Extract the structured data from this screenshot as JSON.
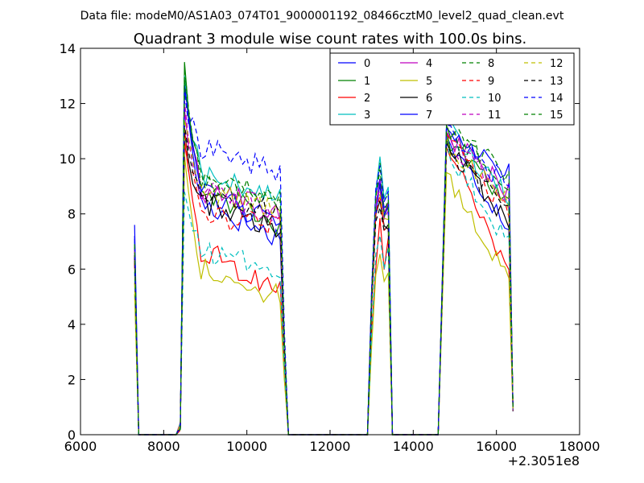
{
  "suptitle": "Data file: modeM0/AS1A03_074T01_9000001192_08466cztM0_level2_quad_clean.evt",
  "chart_data": {
    "type": "line",
    "title": "Quadrant 3 module wise count rates with 100.0s bins.",
    "xlabel": "",
    "ylabel": "",
    "xlim": [
      6000,
      18000
    ],
    "ylim": [
      0,
      14
    ],
    "x_offset_label": "+2.3051e8",
    "x_ticks": [
      6000,
      8000,
      10000,
      12000,
      14000,
      16000,
      18000
    ],
    "x_tick_labels": [
      "6000",
      "8000",
      "10000",
      "12000",
      "14000",
      "16000",
      "18000"
    ],
    "y_ticks": [
      0,
      2,
      4,
      6,
      8,
      10,
      12,
      14
    ],
    "y_tick_labels": [
      "0",
      "2",
      "4",
      "6",
      "8",
      "10",
      "12",
      "14"
    ],
    "legend_position": "top-right",
    "legend_columns": 4,
    "grid": false,
    "segments": [
      {
        "name": "gap-0",
        "x": [
          7300,
          7400
        ],
        "role": "zero"
      },
      {
        "name": "interval-1",
        "x_start": 7300,
        "x_end": 7400
      },
      {
        "name": "interval-2",
        "x_start": 8400,
        "x_end": 10900
      },
      {
        "name": "interval-3",
        "x_start": 13000,
        "x_end": 13500
      },
      {
        "name": "interval-4",
        "x_start": 14700,
        "x_end": 16400
      }
    ],
    "series": [
      {
        "name": "0",
        "color": "#0000ff",
        "dash": "solid",
        "levels": [
          7.6,
          12.8,
          8.6,
          7.1,
          9.4,
          8.6,
          10.8,
          7.6
        ]
      },
      {
        "name": "1",
        "color": "#008000",
        "dash": "solid",
        "levels": [
          6.9,
          13.5,
          9.2,
          7.6,
          9.1,
          8.2,
          11.0,
          8.2
        ]
      },
      {
        "name": "2",
        "color": "#ff0000",
        "dash": "solid",
        "levels": [
          6.3,
          10.6,
          6.9,
          5.3,
          7.9,
          6.2,
          10.4,
          5.9
        ]
      },
      {
        "name": "3",
        "color": "#00bfbf",
        "dash": "solid",
        "levels": [
          7.0,
          13.0,
          9.6,
          8.5,
          10.1,
          8.9,
          11.4,
          8.5
        ]
      },
      {
        "name": "4",
        "color": "#bf00bf",
        "dash": "solid",
        "levels": [
          6.6,
          11.8,
          9.0,
          8.1,
          9.2,
          8.3,
          11.2,
          8.8
        ]
      },
      {
        "name": "5",
        "color": "#bfbf00",
        "dash": "solid",
        "levels": [
          5.1,
          10.1,
          6.2,
          5.0,
          6.5,
          5.7,
          9.5,
          5.6
        ]
      },
      {
        "name": "6",
        "color": "#000000",
        "dash": "solid",
        "levels": [
          6.4,
          11.0,
          8.6,
          7.4,
          8.4,
          7.8,
          10.7,
          7.7
        ]
      },
      {
        "name": "7",
        "color": "#0000ff",
        "dash": "solid",
        "levels": [
          7.2,
          12.6,
          9.1,
          7.6,
          9.0,
          8.2,
          11.1,
          9.5
        ]
      },
      {
        "name": "8",
        "color": "#008000",
        "dash": "dashed",
        "levels": [
          6.8,
          13.3,
          9.5,
          8.3,
          9.7,
          8.7,
          11.3,
          9.5
        ]
      },
      {
        "name": "9",
        "color": "#ff0000",
        "dash": "dashed",
        "levels": [
          6.2,
          11.1,
          8.0,
          7.5,
          8.5,
          8.0,
          10.9,
          8.1
        ]
      },
      {
        "name": "10",
        "color": "#00bfbf",
        "dash": "dashed",
        "levels": [
          5.9,
          8.8,
          6.6,
          6.1,
          7.4,
          6.5,
          10.6,
          6.9
        ]
      },
      {
        "name": "11",
        "color": "#bf00bf",
        "dash": "dashed",
        "levels": [
          6.7,
          12.1,
          9.0,
          8.0,
          9.0,
          8.4,
          11.0,
          8.6
        ]
      },
      {
        "name": "12",
        "color": "#bfbf00",
        "dash": "dashed",
        "levels": [
          5.5,
          11.4,
          8.9,
          8.2,
          8.8,
          8.4,
          10.8,
          8.3
        ]
      },
      {
        "name": "13",
        "color": "#000000",
        "dash": "dashed",
        "levels": [
          6.5,
          11.2,
          8.9,
          8.0,
          8.3,
          7.9,
          10.6,
          8.0
        ]
      },
      {
        "name": "14",
        "color": "#0000ff",
        "dash": "dashed",
        "levels": [
          7.1,
          12.4,
          10.5,
          9.6,
          9.8,
          9.0,
          11.2,
          9.0
        ]
      },
      {
        "name": "15",
        "color": "#008000",
        "dash": "dashed",
        "levels": [
          6.9,
          12.9,
          9.4,
          8.5,
          9.6,
          8.6,
          11.2,
          9.1
        ]
      }
    ]
  }
}
